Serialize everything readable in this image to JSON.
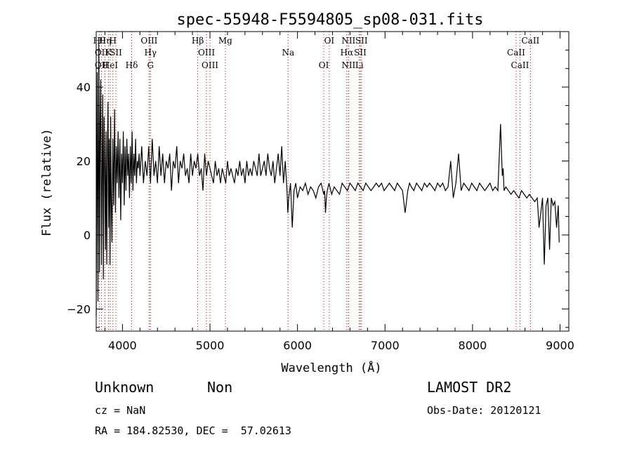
{
  "chart_data": {
    "type": "line",
    "title": "spec-55948-F5594805_sp08-031.fits",
    "xlabel": "Wavelength (Å)",
    "ylabel": "Flux (relative)",
    "xlim": [
      3700,
      9100
    ],
    "ylim": [
      -26,
      55
    ],
    "xticks": [
      4000,
      5000,
      6000,
      7000,
      8000,
      9000
    ],
    "yticks": [
      -20,
      0,
      20,
      40
    ],
    "grid": false,
    "line_color": "#000000",
    "marker_color": "#cc0000",
    "series": [
      {
        "x": [
          3700,
          3712,
          3720,
          3730,
          3738,
          3745,
          3752,
          3760,
          3768,
          3775,
          3782,
          3790,
          3798,
          3805,
          3812,
          3820,
          3828,
          3835,
          3842,
          3850,
          3858,
          3865,
          3872,
          3880,
          3890,
          3900,
          3910,
          3920,
          3930,
          3940,
          3950,
          3960,
          3970,
          3980,
          3990,
          4000,
          4010,
          4020,
          4030,
          4040,
          4050,
          4060,
          4070,
          4080,
          4090,
          4100,
          4110,
          4120,
          4130,
          4140,
          4150,
          4160,
          4170,
          4180,
          4190,
          4200,
          4220,
          4240,
          4260,
          4280,
          4300,
          4320,
          4340,
          4360,
          4380,
          4400,
          4420,
          4440,
          4460,
          4480,
          4500,
          4520,
          4540,
          4560,
          4580,
          4600,
          4620,
          4640,
          4660,
          4680,
          4700,
          4720,
          4740,
          4760,
          4780,
          4800,
          4820,
          4840,
          4860,
          4880,
          4900,
          4920,
          4940,
          4960,
          4980,
          5000,
          5020,
          5040,
          5060,
          5080,
          5100,
          5120,
          5140,
          5160,
          5180,
          5200,
          5220,
          5240,
          5260,
          5280,
          5300,
          5320,
          5340,
          5360,
          5380,
          5400,
          5420,
          5440,
          5460,
          5480,
          5500,
          5520,
          5540,
          5560,
          5580,
          5600,
          5620,
          5640,
          5660,
          5680,
          5700,
          5720,
          5740,
          5760,
          5780,
          5800,
          5820,
          5840,
          5860,
          5880,
          5890,
          5900,
          5920,
          5940,
          5960,
          5980,
          6000,
          6030,
          6060,
          6090,
          6120,
          6150,
          6180,
          6210,
          6240,
          6270,
          6300,
          6310,
          6320,
          6330,
          6340,
          6360,
          6390,
          6420,
          6450,
          6480,
          6510,
          6540,
          6570,
          6600,
          6630,
          6660,
          6690,
          6720,
          6750,
          6780,
          6810,
          6840,
          6870,
          6900,
          6930,
          6960,
          6990,
          7020,
          7050,
          7080,
          7110,
          7140,
          7170,
          7200,
          7230,
          7260,
          7280,
          7300,
          7330,
          7360,
          7390,
          7420,
          7450,
          7480,
          7510,
          7540,
          7570,
          7600,
          7630,
          7660,
          7690,
          7720,
          7750,
          7780,
          7810,
          7840,
          7870,
          7900,
          7930,
          7960,
          7990,
          8020,
          8050,
          8080,
          8110,
          8140,
          8170,
          8200,
          8230,
          8260,
          8290,
          8320,
          8340,
          8350,
          8360,
          8380,
          8410,
          8440,
          8470,
          8500,
          8530,
          8560,
          8590,
          8620,
          8650,
          8680,
          8710,
          8740,
          8760,
          8780,
          8800,
          8820,
          8840,
          8860,
          8880,
          8900,
          8920,
          8940,
          8960,
          8980,
          8990
        ],
        "y": [
          -22,
          44,
          -18,
          52,
          -10,
          30,
          42,
          -8,
          20,
          38,
          -12,
          32,
          18,
          -4,
          28,
          -8,
          24,
          36,
          2,
          26,
          -8,
          32,
          10,
          -2,
          26,
          8,
          34,
          6,
          24,
          14,
          28,
          10,
          26,
          4,
          22,
          14,
          28,
          8,
          24,
          12,
          26,
          16,
          22,
          10,
          24,
          14,
          28,
          12,
          22,
          16,
          26,
          14,
          20,
          18,
          22,
          16,
          24,
          14,
          20,
          16,
          24,
          14,
          26,
          16,
          20,
          14,
          24,
          16,
          22,
          14,
          20,
          18,
          22,
          12,
          20,
          18,
          24,
          14,
          20,
          18,
          22,
          16,
          18,
          14,
          22,
          16,
          20,
          18,
          22,
          16,
          18,
          12,
          22,
          16,
          20,
          18,
          16,
          14,
          20,
          16,
          18,
          14,
          18,
          16,
          14,
          20,
          16,
          18,
          16,
          14,
          18,
          16,
          20,
          16,
          18,
          14,
          20,
          16,
          18,
          16,
          20,
          18,
          16,
          22,
          16,
          18,
          20,
          16,
          22,
          18,
          16,
          20,
          14,
          18,
          22,
          16,
          24,
          14,
          20,
          12,
          6,
          10,
          14,
          2,
          12,
          14,
          10,
          13,
          12,
          14,
          11,
          13,
          12,
          10,
          13,
          14,
          11,
          12,
          6,
          10,
          12,
          14,
          11,
          13,
          12,
          11,
          14,
          13,
          12,
          14,
          13,
          12,
          14,
          13,
          12,
          14,
          13,
          12,
          13,
          14,
          13,
          14,
          12,
          13,
          14,
          13,
          12,
          14,
          13,
          12,
          6,
          12,
          14,
          13,
          12,
          14,
          13,
          12,
          14,
          13,
          14,
          13,
          12,
          14,
          13,
          14,
          12,
          13,
          20,
          10,
          14,
          22,
          12,
          14,
          13,
          12,
          14,
          13,
          12,
          14,
          13,
          12,
          13,
          14,
          12,
          13,
          12,
          30,
          16,
          18,
          12,
          13,
          12,
          11,
          12,
          11,
          10,
          12,
          11,
          10,
          11,
          10,
          9,
          10,
          2,
          6,
          10,
          -8,
          8,
          10,
          -4,
          10,
          8,
          9,
          2,
          8,
          -2
        ]
      }
    ],
    "lines_top": [
      {
        "x": 3735,
        "label": "Hθ"
      },
      {
        "x": 3760,
        "label": "OII"
      },
      {
        "x": 3760,
        "label": "OII"
      },
      {
        "x": 3800,
        "label": "Hη"
      },
      {
        "x": 3840,
        "label": "K"
      },
      {
        "x": 3860,
        "label": "HeI"
      },
      {
        "x": 3890,
        "label": "H"
      },
      {
        "x": 3925,
        "label": "SII"
      },
      {
        "x": 4105,
        "label": "Hδ"
      },
      {
        "x": 4305,
        "label": "OIII"
      },
      {
        "x": 4320,
        "label": "Hγ"
      },
      {
        "x": 4320,
        "label": "G"
      },
      {
        "x": 4860,
        "label": "Hβ"
      },
      {
        "x": 4960,
        "label": "OIII"
      },
      {
        "x": 5000,
        "label": "OIII"
      },
      {
        "x": 5175,
        "label": "Mg"
      },
      {
        "x": 5893,
        "label": "Na"
      },
      {
        "x": 6300,
        "label": "OI"
      },
      {
        "x": 6363,
        "label": "OI"
      },
      {
        "x": 6563,
        "label": "Hα"
      },
      {
        "x": 6583,
        "label": "NII"
      },
      {
        "x": 6583,
        "label": "NII"
      },
      {
        "x": 6717,
        "label": "SII"
      },
      {
        "x": 6707,
        "label": "Li"
      },
      {
        "x": 6731,
        "label": "SII"
      },
      {
        "x": 8498,
        "label": "CaII"
      },
      {
        "x": 8542,
        "label": "CaII"
      },
      {
        "x": 8662,
        "label": "CaII"
      }
    ]
  },
  "info": {
    "class": "Unknown",
    "subclass": "Non",
    "cz": "cz = NaN",
    "radec": "RA = 184.82530, DEC =  57.02613",
    "survey": "LAMOST DR2",
    "obsdate": "Obs-Date: 20120121"
  }
}
